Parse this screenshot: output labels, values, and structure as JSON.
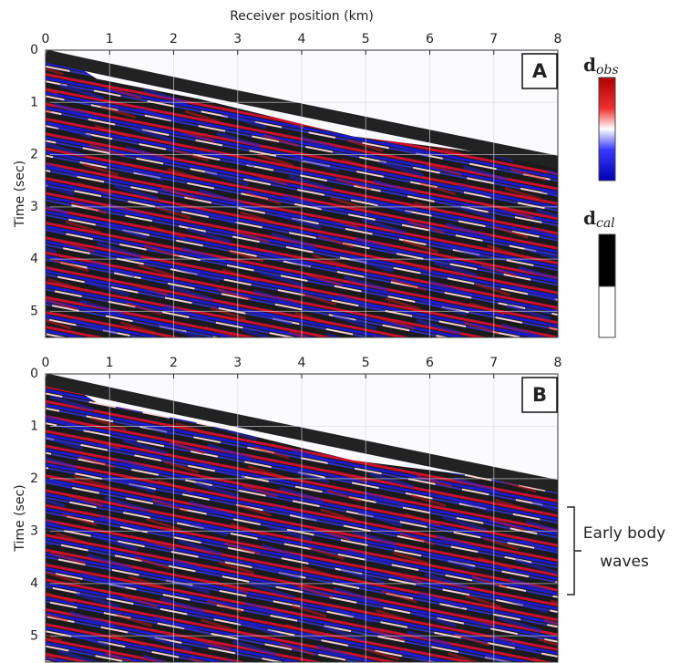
{
  "figure": {
    "xlabel": "Receiver position (km)",
    "ylabel": "Time (sec)",
    "panels": [
      {
        "label": "A",
        "xlim": [
          0,
          8
        ],
        "xticks": [
          0,
          1,
          2,
          3,
          4,
          5,
          6,
          7,
          8
        ],
        "ylim": [
          0,
          5.5
        ],
        "yticks": [
          0,
          1,
          2,
          3,
          4,
          5
        ]
      },
      {
        "label": "B",
        "xlim": [
          0,
          8
        ],
        "xticks": [
          0,
          1,
          2,
          3,
          4,
          5,
          6,
          7,
          8
        ],
        "ylim": [
          0,
          5.5
        ],
        "yticks": [
          0,
          1,
          2,
          3,
          4,
          5
        ]
      }
    ],
    "colorbars": [
      {
        "label": "d",
        "subscript": "obs"
      },
      {
        "label": "d",
        "subscript": "cal"
      }
    ],
    "annotation": [
      "Early body",
      "waves"
    ]
  }
}
